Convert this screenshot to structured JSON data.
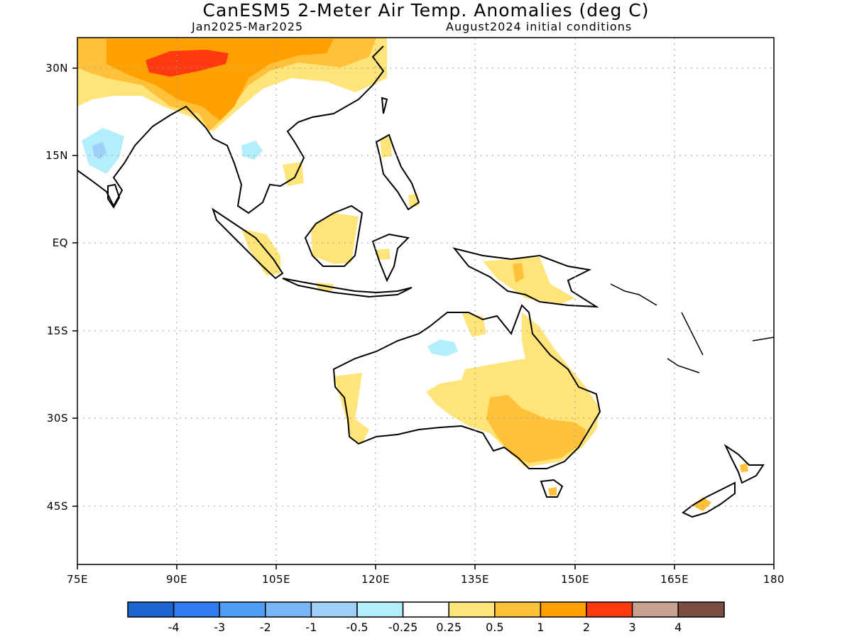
{
  "title": "CanESM5 2-Meter Air Temp. Anomalies (deg C)",
  "period": "Jan2025-Mar2025",
  "init": "August2024 initial conditions",
  "lat_labels": [
    "30N",
    "15N",
    "EQ",
    "15S",
    "30S",
    "45S"
  ],
  "lon_labels": [
    "75E",
    "90E",
    "105E",
    "120E",
    "135E",
    "150E",
    "165E",
    "180"
  ],
  "colorbar": {
    "colors": [
      "#1c64d0",
      "#2f7df0",
      "#4d9cf5",
      "#78b6f8",
      "#9ed0fa",
      "#b3eefb",
      "#ffffff",
      "#ffe47a",
      "#ffc03a",
      "#ff9f00",
      "#ff3a10",
      "#c8a090",
      "#7a4e40"
    ],
    "labels": [
      "-4",
      "-3",
      "-2",
      "-1",
      "-0.5",
      "-0.25",
      "0.25",
      "0.5",
      "1",
      "2",
      "3",
      "4"
    ]
  },
  "colors": {
    "weak_warm": "#ffe47a",
    "warm": "#ffc03a",
    "moderate_warm": "#ff9f00",
    "strong_warm": "#ff3a10",
    "weak_cool": "#b3eefb",
    "cool": "#9ed0fa"
  }
}
